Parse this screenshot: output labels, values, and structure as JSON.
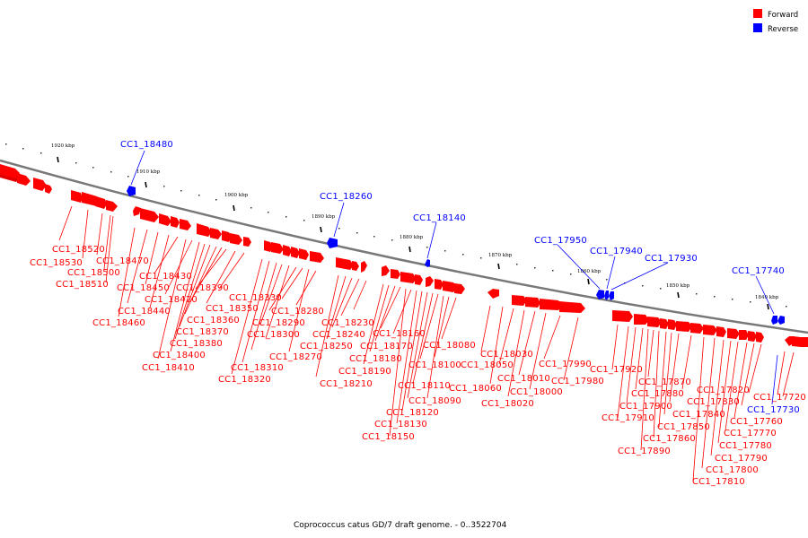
{
  "legend": [
    {
      "label": "Forward",
      "color": "#ff0000"
    },
    {
      "label": "Reverse",
      "color": "#0000ff"
    }
  ],
  "caption": "Coprococcus catus GD/7 draft genome. - 0..3522704",
  "axis": {
    "line_color": "#787878",
    "ticks": [
      "1920 kbp",
      "1910 kbp",
      "1900 kbp",
      "1890 kbp",
      "1880 kbp",
      "1870 kbp",
      "1860 kbp",
      "1850 kbp",
      "1840 kbp"
    ]
  },
  "forward_color": "#ff0000",
  "reverse_color": "#0000ff",
  "forward_labels": [
    "CC1_18520",
    "CC1_18530",
    "CC1_18470",
    "CC1_18500",
    "CC1_18510",
    "CC1_18430",
    "CC1_18450",
    "CC1_18390",
    "CC1_18420",
    "CC1_18330",
    "CC1_18440",
    "CC1_18350",
    "CC1_18280",
    "CC1_18360",
    "CC1_18290",
    "CC1_18460",
    "CC1_18230",
    "CC1_18370",
    "CC1_18300",
    "CC1_18240",
    "CC1_18160",
    "CC1_18380",
    "CC1_18250",
    "CC1_18170",
    "CC1_18080",
    "CC1_18400",
    "CC1_18270",
    "CC1_18180",
    "CC1_18030",
    "CC1_18410",
    "CC1_18310",
    "CC1_18190",
    "CC1_18100",
    "CC1_18050",
    "CC1_17990",
    "CC1_17920",
    "CC1_18320",
    "CC1_18210",
    "CC1_18110",
    "CC1_18010",
    "CC1_17980",
    "CC1_17870",
    "CC1_18060",
    "CC1_18090",
    "CC1_18000",
    "CC1_17880",
    "CC1_17820",
    "CC1_18120",
    "CC1_18020",
    "CC1_17900",
    "CC1_17830",
    "CC1_17720",
    "CC1_17840",
    "CC1_17910",
    "CC1_18130",
    "CC1_17850",
    "CC1_17760",
    "CC1_18150",
    "CC1_17860",
    "CC1_17770",
    "CC1_17780",
    "CC1_17890",
    "CC1_17790",
    "CC1_17800",
    "CC1_17810"
  ],
  "reverse_labels": [
    "CC1_18480",
    "CC1_18260",
    "CC1_18140",
    "CC1_17950",
    "CC1_17940",
    "CC1_17930",
    "CC1_17740",
    "CC1_17730"
  ]
}
